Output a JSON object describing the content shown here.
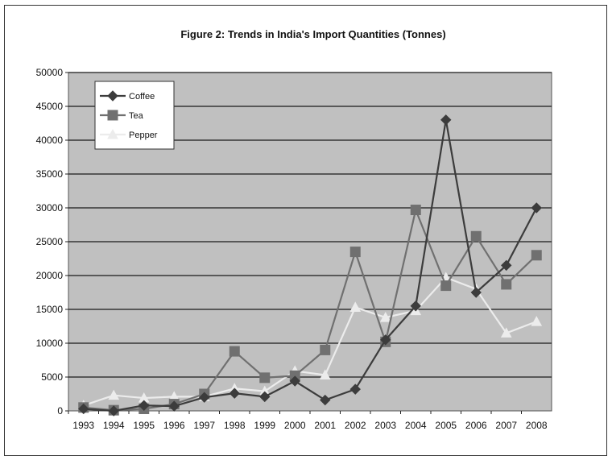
{
  "chart_data": {
    "type": "line",
    "title": "Figure 2: Trends in India's Import Quantities (Tonnes)",
    "xlabel": "",
    "ylabel": "",
    "categories": [
      "1993",
      "1994",
      "1995",
      "1996",
      "1997",
      "1998",
      "1999",
      "2000",
      "2001",
      "2002",
      "2003",
      "2004",
      "2005",
      "2006",
      "2007",
      "2008"
    ],
    "y_ticks": [
      "0",
      "5000",
      "10000",
      "15000",
      "20000",
      "25000",
      "30000",
      "35000",
      "40000",
      "45000",
      "50000"
    ],
    "ylim": [
      0,
      50000
    ],
    "grid": "horizontal",
    "legend_position": "top-left",
    "plot_background": "#c0c0c0",
    "series": [
      {
        "name": "Coffee",
        "color": "#3c3c3c",
        "marker": "diamond",
        "values": [
          300,
          0,
          800,
          700,
          2000,
          2600,
          2100,
          4400,
          1600,
          3200,
          10500,
          15500,
          43000,
          17500,
          21500,
          30000
        ]
      },
      {
        "name": "Tea",
        "color": "#707070",
        "marker": "square",
        "values": [
          500,
          100,
          300,
          1000,
          2500,
          8800,
          4900,
          5200,
          9000,
          23500,
          10200,
          29700,
          18500,
          25800,
          18700,
          23000
        ]
      },
      {
        "name": "Pepper",
        "color": "#ececec",
        "marker": "triangle",
        "values": [
          800,
          2300,
          1900,
          2100,
          2100,
          3300,
          2900,
          5900,
          5300,
          15300,
          13800,
          14800,
          19700,
          18000,
          11500,
          13200
        ]
      }
    ]
  }
}
